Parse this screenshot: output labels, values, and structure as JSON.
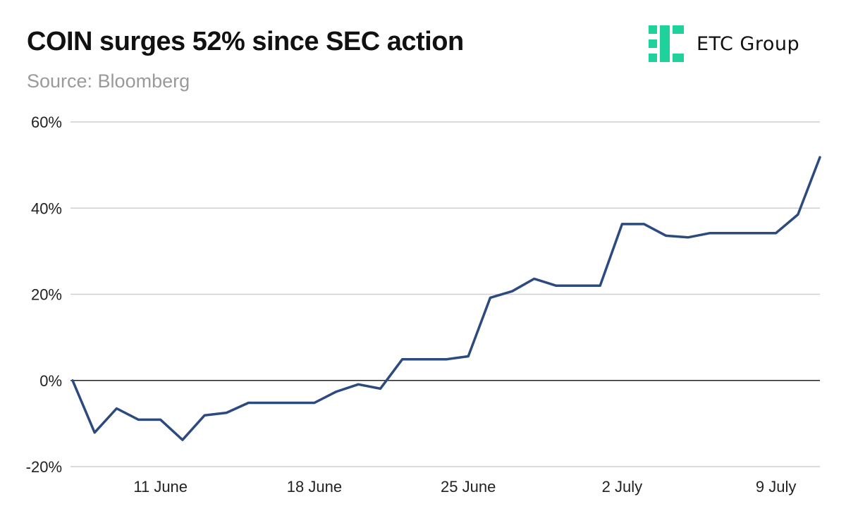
{
  "header": {
    "title": "COIN surges 52% since SEC action",
    "subtitle": "Source: Bloomberg"
  },
  "logo": {
    "icon": "etc-group-logo-icon",
    "text": "ETC Group",
    "color": "#1fd19b"
  },
  "chart_data": {
    "type": "line",
    "title": "COIN surges 52% since SEC action",
    "subtitle": "Source: Bloomberg",
    "xlabel": "",
    "ylabel": "",
    "ylim": [
      -20,
      60
    ],
    "y_ticks": [
      "60%",
      "40%",
      "20%",
      "0%",
      "-20%"
    ],
    "y_tick_values": [
      60,
      40,
      20,
      0,
      -20
    ],
    "x_ticks": [
      "11 June",
      "18 June",
      "25 June",
      "2 July",
      "9 July"
    ],
    "x_tick_dates": [
      "2023-06-11",
      "2023-06-18",
      "2023-06-25",
      "2023-07-02",
      "2023-07-09"
    ],
    "grid": true,
    "legend": "none",
    "line_color": "#2d4a7e",
    "series": [
      {
        "x": [
          "2023-06-07",
          "2023-06-08",
          "2023-06-09",
          "2023-06-10",
          "2023-06-11",
          "2023-06-12",
          "2023-06-13",
          "2023-06-14",
          "2023-06-15",
          "2023-06-16",
          "2023-06-17",
          "2023-06-18",
          "2023-06-19",
          "2023-06-20",
          "2023-06-21",
          "2023-06-22",
          "2023-06-23",
          "2023-06-24",
          "2023-06-25",
          "2023-06-26",
          "2023-06-27",
          "2023-06-28",
          "2023-06-29",
          "2023-06-30",
          "2023-07-01",
          "2023-07-02",
          "2023-07-03",
          "2023-07-04",
          "2023-07-05",
          "2023-07-06",
          "2023-07-07",
          "2023-07-08",
          "2023-07-09",
          "2023-07-10",
          "2023-07-11"
        ],
        "values": [
          0,
          -12.1,
          -6.5,
          -9.1,
          -9.1,
          -13.8,
          -8.1,
          -7.5,
          -5.2,
          -5.2,
          -5.2,
          -5.2,
          -2.6,
          -0.9,
          -1.9,
          4.9,
          4.9,
          4.9,
          5.6,
          19.2,
          20.7,
          23.6,
          22.0,
          22.0,
          22.0,
          36.3,
          36.3,
          33.6,
          33.2,
          34.2,
          34.2,
          34.2,
          34.2,
          38.5,
          51.8
        ]
      }
    ]
  }
}
